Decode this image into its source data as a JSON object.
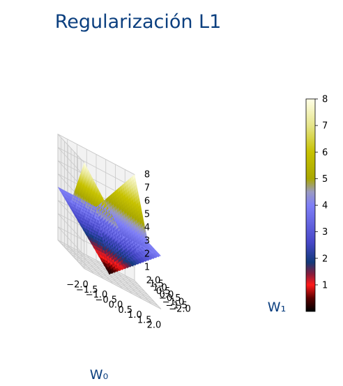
{
  "chart_data": {
    "type": "surface",
    "title": "Regularización L1",
    "xlabel": "W₀",
    "ylabel": "W₁",
    "zlabel": "",
    "function": "|w0| + |w1| + |w0 + w1|",
    "x_range": [
      -2.0,
      2.0
    ],
    "y_range": [
      -2.0,
      2.0
    ],
    "z_range": [
      0,
      8
    ],
    "x_ticks": [
      "−2.0",
      "−1.5",
      "−1.0",
      "−0.5",
      "0.0",
      "0.5",
      "1.0",
      "1.5",
      "2.0"
    ],
    "y_ticks": [
      "−2.0",
      "−1.5",
      "−1.0",
      "−0.5",
      "0.0",
      "0.5",
      "1.0",
      "1.5",
      "2.0"
    ],
    "z_ticks": [
      "1",
      "2",
      "3",
      "4",
      "5",
      "6",
      "7",
      "8"
    ],
    "grid": true,
    "colormap": "gist_stern-like (black → red → dark navy → slate blue → olive → pale yellow)",
    "colorbar": {
      "range": [
        0,
        8
      ],
      "ticks": [
        "1",
        "2",
        "3",
        "4",
        "5",
        "6",
        "7",
        "8"
      ],
      "stops": [
        {
          "v": 0.0,
          "color": "#000000"
        },
        {
          "v": 0.5,
          "color": "#5a0000"
        },
        {
          "v": 1.0,
          "color": "#ff1a1a"
        },
        {
          "v": 1.4,
          "color": "#8a1b3a"
        },
        {
          "v": 1.85,
          "color": "#123a7a"
        },
        {
          "v": 2.6,
          "color": "#4747c8"
        },
        {
          "v": 4.0,
          "color": "#7f7ff7"
        },
        {
          "v": 4.5,
          "color": "#9a9ac2"
        },
        {
          "v": 5.0,
          "color": "#a9a700"
        },
        {
          "v": 6.0,
          "color": "#c7c200"
        },
        {
          "v": 7.0,
          "color": "#e6e58a"
        },
        {
          "v": 8.0,
          "color": "#ffffe8"
        }
      ]
    }
  }
}
